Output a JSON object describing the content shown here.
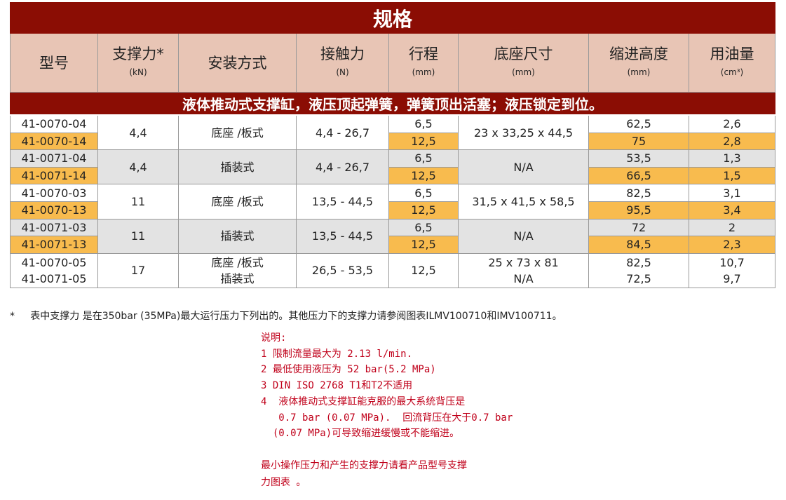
{
  "title": "规格",
  "table": {
    "header": [
      {
        "label": "型号"
      },
      {
        "label": "支撑力*",
        "unit": "(kN)"
      },
      {
        "label": "安装方式"
      },
      {
        "label": "接触力",
        "unit": "(N)"
      },
      {
        "label": "行程",
        "unit": "(mm)"
      },
      {
        "label": "底座尺寸",
        "unit": "(mm)"
      },
      {
        "label": "缩进高度",
        "unit": "(mm)"
      },
      {
        "label": "用油量",
        "unit": "(cm³)"
      }
    ],
    "subtitle": "液体推动式支撑缸，液压顶起弹簧，弹簧顶出活塞；液压锁定到位。",
    "groups": [
      {
        "highlight": true,
        "model": [
          "41-0070-04",
          "41-0070-14"
        ],
        "force": "4,4",
        "mount": "底座 /板式",
        "contact": "4,4 - 26,7",
        "stroke": [
          "6,5",
          "12,5"
        ],
        "base": "23 x 33,25 x 44,5",
        "retract": [
          "62,5",
          "75"
        ],
        "oil": [
          "2,6",
          "2,8"
        ]
      },
      {
        "highlight": true,
        "model": [
          "41-0071-04",
          "41-0071-14"
        ],
        "force": "4,4",
        "mount": "插装式",
        "contact": "4,4 - 26,7",
        "stroke": [
          "6,5",
          "12,5"
        ],
        "base": "N/A",
        "retract": [
          "53,5",
          "66,5"
        ],
        "oil": [
          "1,3",
          "1,5"
        ]
      },
      {
        "highlight": true,
        "model": [
          "41-0070-03",
          "41-0070-13"
        ],
        "force": "11",
        "mount": "底座 /板式",
        "contact": "13,5 - 44,5",
        "stroke": [
          "6,5",
          "12,5"
        ],
        "base": "31,5 x 41,5 x 58,5",
        "retract": [
          "82,5",
          "95,5"
        ],
        "oil": [
          "3,1",
          "3,4"
        ]
      },
      {
        "highlight": true,
        "model": [
          "41-0071-03",
          "41-0071-13"
        ],
        "force": "11",
        "mount": "插装式",
        "contact": "13,5 - 44,5",
        "stroke": [
          "6,5",
          "12,5"
        ],
        "base": "N/A",
        "retract": [
          "72",
          "84,5"
        ],
        "oil": [
          "2",
          "2,3"
        ]
      },
      {
        "highlight": false,
        "model": [
          "41-0070-05",
          "41-0071-05"
        ],
        "force": "17",
        "mount": [
          "底座 /板式",
          "插装式"
        ],
        "contact": "26,5 - 53,5",
        "stroke": "12,5",
        "base": [
          "25 x 73 x 81",
          "N/A"
        ],
        "retract": [
          "82,5",
          "72,5"
        ],
        "oil": [
          "10,7",
          "9,7"
        ]
      }
    ]
  },
  "footnote": {
    "marker": "*",
    "text": "表中支撑力 是在350bar (35MPa)最大运行压力下列出的。其他压力下的支撑力请参阅图表ILMV100710和IMV100711。"
  },
  "notes": {
    "lines": [
      "说明:",
      "1 限制流量最大为 2.13 l/min.",
      "2 最低使用液压为 52 bar(5.2 MPa)",
      "3 DIN ISO 2768 T1和T2不适用",
      "4  液体推动式支撑缸能克服的最大系统背压是",
      "   0.7 bar (0.07 MPa).  回流背压在大于0.7 bar",
      "  (0.07 MPa)可导致缩进缓慢或不能缩进。"
    ],
    "closing": [
      "最小操作压力和产生的支撑力请看产品型号支撑",
      "力图表 。"
    ]
  }
}
